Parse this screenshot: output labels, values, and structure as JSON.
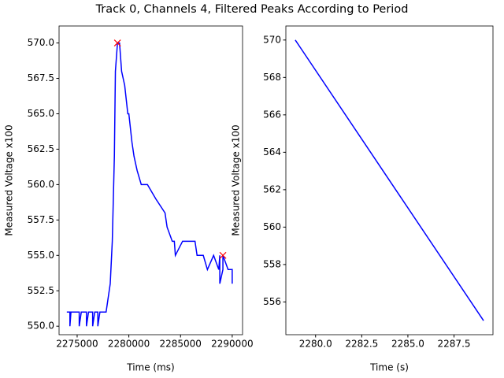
{
  "title": "Track 0, Channels 4, Filtered Peaks According to Period",
  "chart_data": [
    {
      "type": "line",
      "xlabel": "Time (ms)",
      "ylabel": "Measured Voltage x100",
      "xlim": [
        2273250,
        2291000
      ],
      "ylim": [
        549.4,
        571.2
      ],
      "xticks": [
        2275000,
        2280000,
        2285000,
        2290000
      ],
      "yticks": [
        {
          "value": 550,
          "label": "550.0"
        },
        552.5,
        {
          "value": 555,
          "label": "555.0"
        },
        557.5,
        {
          "value": 560,
          "label": "560.0"
        },
        562.5,
        {
          "value": 565,
          "label": "565.0"
        },
        567.5,
        {
          "value": 570,
          "label": "570.0"
        }
      ],
      "series": [
        {
          "color": "#0000ff",
          "x": [
            2274000,
            2274300,
            2274300,
            2274400,
            2275200,
            2275200,
            2275400,
            2275900,
            2275900,
            2276100,
            2276500,
            2276500,
            2276700,
            2277000,
            2277000,
            2277200,
            2277800,
            2278000,
            2278200,
            2278400,
            2278600,
            2278700,
            2278900,
            2279100,
            2279300,
            2279600,
            2279900,
            2280000,
            2280300,
            2280500,
            2280800,
            2281200,
            2281800,
            2282600,
            2283500,
            2283700,
            2284200,
            2284400,
            2284500,
            2285200,
            2286400,
            2286600,
            2287200,
            2287600,
            2288200,
            2288700,
            2288800,
            2288800,
            2289100,
            2289100,
            2289600,
            2290000,
            2290000
          ],
          "values": [
            551,
            551,
            550,
            551,
            551,
            550,
            551,
            551,
            550,
            551,
            551,
            550,
            551,
            551,
            550,
            551,
            551,
            552,
            553,
            556,
            562,
            568,
            570,
            570,
            568,
            567,
            565,
            565,
            563,
            562,
            561,
            560,
            560,
            559,
            558,
            557,
            556,
            556,
            555,
            556,
            556,
            555,
            555,
            554,
            555,
            554,
            555,
            553,
            554,
            555,
            554,
            554,
            553
          ]
        },
        {
          "color": "#ff0000",
          "marker": "x",
          "x": [
            2278900,
            2289100
          ],
          "values": [
            570,
            555
          ]
        }
      ]
    },
    {
      "type": "line",
      "xlabel": "Time (s)",
      "ylabel": "Measured Voltage x100",
      "xlim": [
        2278.39,
        2289.61
      ],
      "ylim": [
        554.25,
        570.75
      ],
      "xticks": [
        {
          "value": 2280,
          "label": "2280.0"
        },
        2282.5,
        {
          "value": 2285,
          "label": "2285.0"
        },
        2287.5
      ],
      "yticks": [
        556,
        558,
        560,
        562,
        564,
        566,
        568,
        570
      ],
      "series": [
        {
          "color": "#0000ff",
          "x": [
            2278.9,
            2289.1
          ],
          "values": [
            570,
            555
          ]
        }
      ]
    }
  ]
}
